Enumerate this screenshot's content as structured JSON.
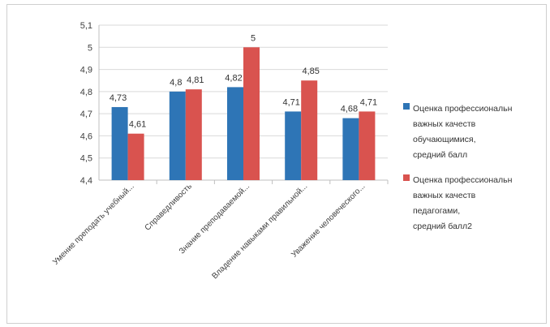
{
  "chart_data": {
    "type": "bar",
    "categories": [
      "Умение преподать учебный...",
      "Справедливость",
      "Знание преподаваемой...",
      "Владение навыками правильной...",
      "Уважение человеческого..."
    ],
    "series": [
      {
        "name": "Оценка профессиональн\nважных качеств\nобучающимися,\nсредний балл",
        "values": [
          4.73,
          4.8,
          4.82,
          4.71,
          4.68
        ],
        "labels": [
          "4,73",
          "4,8",
          "4,82",
          "4,71",
          "4,68"
        ],
        "color": "#2e75b6"
      },
      {
        "name": "Оценка профессиональн\nважных качеств\nпедагогами,\nсредний балл2",
        "values": [
          4.61,
          4.81,
          5,
          4.85,
          4.71
        ],
        "labels": [
          "4,61",
          "4,81",
          "5",
          "4,85",
          "4,71"
        ],
        "color": "#d9534f"
      }
    ],
    "ylim": [
      4.4,
      5.1
    ],
    "yticks": [
      "4,4",
      "4,5",
      "4,6",
      "4,7",
      "4,8",
      "4,9",
      "5",
      "5,1"
    ],
    "grid": true,
    "legend_position": "right"
  }
}
